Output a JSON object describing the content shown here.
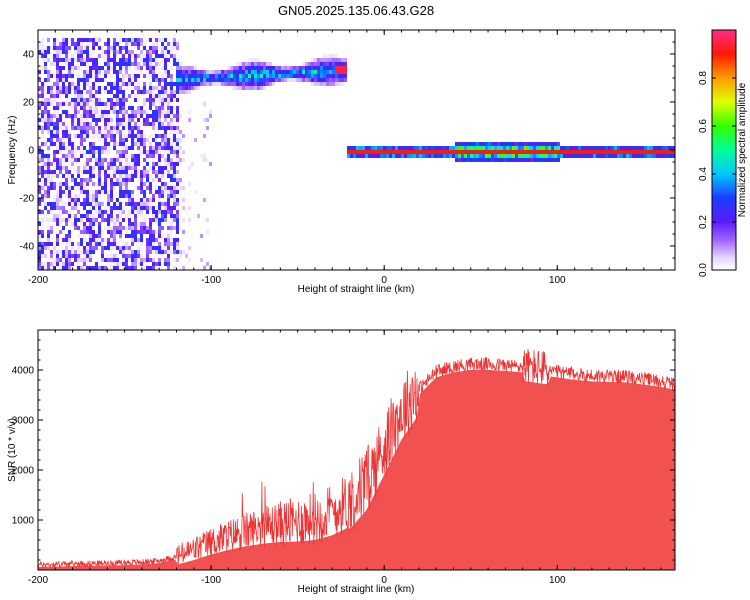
{
  "title": "GN05.2025.135.06.43.G28",
  "colors": {
    "snr_line": "#ee3333",
    "colormap": [
      "#ffffff",
      "#c9a6ff",
      "#7b1cf0",
      "#2d2dff",
      "#00e4ff",
      "#00ff44",
      "#ffee00",
      "#ff2200",
      "#ff2a8a"
    ]
  },
  "chart_data": [
    {
      "type": "heatmap",
      "xlabel": "Height of straight line (km)",
      "ylabel": "Frequency (Hz)",
      "xlim": [
        -200,
        168
      ],
      "ylim": [
        -50,
        50
      ],
      "x_ticks": [
        -200,
        -100,
        0,
        100
      ],
      "y_ticks": [
        -40,
        -20,
        0,
        20,
        40
      ],
      "colorbar": {
        "label": "Normalized spectral amplitude",
        "range": [
          0.0,
          1.0
        ],
        "ticks": [
          0.0,
          0.2,
          0.4,
          0.6,
          0.8
        ]
      },
      "features": [
        {
          "region": "broadband noise",
          "x": [
            -200,
            -120
          ],
          "y": [
            -50,
            48
          ],
          "amplitude": 0.3
        },
        {
          "region": "sparse noise",
          "x": [
            -120,
            -100
          ],
          "y": [
            -50,
            20
          ],
          "amplitude": 0.1
        },
        {
          "region": "doppler band",
          "x": [
            -122,
            -22
          ],
          "y_start": 30,
          "y_end": 34,
          "amplitude": 0.45,
          "peak_x": -25,
          "peak_amplitude": 0.95
        },
        {
          "region": "carrier line",
          "x": [
            -22,
            168
          ],
          "y": 0,
          "amplitude": 0.9
        }
      ]
    },
    {
      "type": "line",
      "xlabel": "Height of straight line (km)",
      "ylabel": "SNR (10 * v/v)",
      "xlim": [
        -200,
        168
      ],
      "ylim": [
        0,
        4800
      ],
      "x_ticks": [
        -200,
        -100,
        0,
        100
      ],
      "y_ticks": [
        1000,
        2000,
        3000,
        4000
      ],
      "series": [
        {
          "x": [
            -200,
            -180,
            -160,
            -140,
            -130,
            -120,
            -110,
            -100,
            -90,
            -80,
            -70,
            -60,
            -50,
            -40,
            -30,
            -20,
            -10,
            0,
            10,
            20,
            30,
            40,
            50,
            60,
            70,
            80,
            90,
            100,
            110,
            120,
            140,
            160,
            168
          ],
          "y": [
            100,
            120,
            130,
            150,
            180,
            260,
            380,
            520,
            640,
            740,
            820,
            880,
            920,
            980,
            1100,
            1300,
            1700,
            2400,
            3100,
            3600,
            3950,
            4050,
            4100,
            4100,
            4080,
            4050,
            4000,
            3950,
            3900,
            3870,
            3850,
            3760,
            3700
          ]
        }
      ]
    }
  ]
}
